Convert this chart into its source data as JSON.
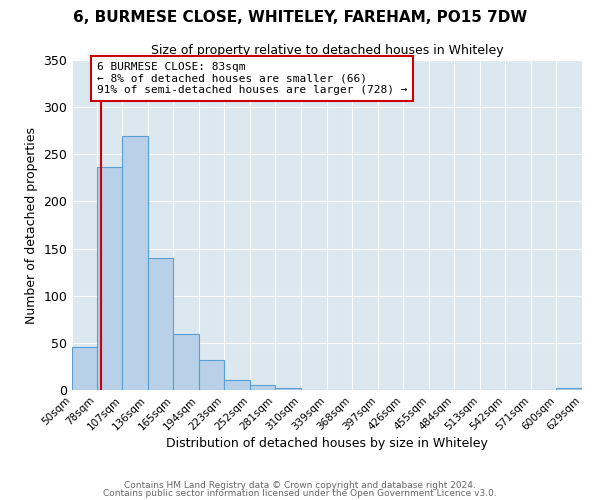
{
  "title": "6, BURMESE CLOSE, WHITELEY, FAREHAM, PO15 7DW",
  "subtitle": "Size of property relative to detached houses in Whiteley",
  "xlabel": "Distribution of detached houses by size in Whiteley",
  "ylabel": "Number of detached properties",
  "bin_edges": [
    50,
    78,
    107,
    136,
    165,
    194,
    223,
    252,
    281,
    310,
    339,
    368,
    397,
    426,
    455,
    484,
    513,
    542,
    571,
    600,
    629
  ],
  "bin_labels": [
    "50sqm",
    "78sqm",
    "107sqm",
    "136sqm",
    "165sqm",
    "194sqm",
    "223sqm",
    "252sqm",
    "281sqm",
    "310sqm",
    "339sqm",
    "368sqm",
    "397sqm",
    "426sqm",
    "455sqm",
    "484sqm",
    "513sqm",
    "542sqm",
    "571sqm",
    "600sqm",
    "629sqm"
  ],
  "counts": [
    46,
    237,
    269,
    140,
    59,
    32,
    11,
    5,
    2,
    0,
    0,
    0,
    0,
    0,
    0,
    0,
    0,
    0,
    0,
    2
  ],
  "bar_color": "#b8d0e8",
  "bar_edge_color": "#5a9fd4",
  "vline_x": 83,
  "vline_color": "#cc0000",
  "annotation_text": "6 BURMESE CLOSE: 83sqm\n← 8% of detached houses are smaller (66)\n91% of semi-detached houses are larger (728) →",
  "annotation_box_color": "#cc0000",
  "ylim": [
    0,
    350
  ],
  "yticks": [
    0,
    50,
    100,
    150,
    200,
    250,
    300,
    350
  ],
  "background_color": "#dce8f0",
  "footer_line1": "Contains HM Land Registry data © Crown copyright and database right 2024.",
  "footer_line2": "Contains public sector information licensed under the Open Government Licence v3.0."
}
